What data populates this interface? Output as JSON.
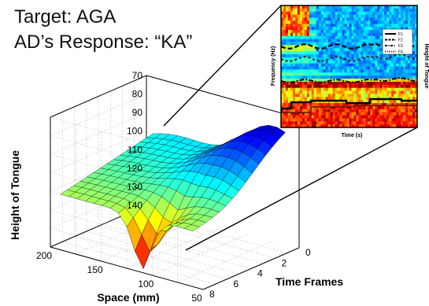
{
  "header": {
    "title_line1": "Target: AGA",
    "title_line2": "AD’s Response: “KA”"
  },
  "chart_data": [
    {
      "type": "surface3d",
      "xlabel": "Space (mm)",
      "ylabel": "Time Frames",
      "zlabel": "Height of Tongue",
      "x_ticks": [
        200,
        150,
        100,
        50
      ],
      "y_ticks": [
        0,
        2,
        4,
        6,
        8
      ],
      "z_ticks": [
        70,
        80,
        90,
        100,
        110,
        120,
        130,
        140
      ],
      "xlim": [
        50,
        200
      ],
      "ylim": [
        0,
        8
      ],
      "zlim": [
        70,
        140
      ],
      "z_reversed": true,
      "grid": true,
      "colormap": "jet",
      "shape": "tongue arch; peak height near 75 mm at early frames, lowest point ~140 at x≈110 mm, frame 8"
    },
    {
      "type": "spectrogram",
      "xlabel": "Time (s)",
      "ylabel": "Frequency (Hz)",
      "y2label": "Height of Tongue",
      "legend": [
        "F1",
        "F2",
        "F3",
        "F4"
      ],
      "legend_position": "top-right",
      "colormap": "jet"
    }
  ]
}
